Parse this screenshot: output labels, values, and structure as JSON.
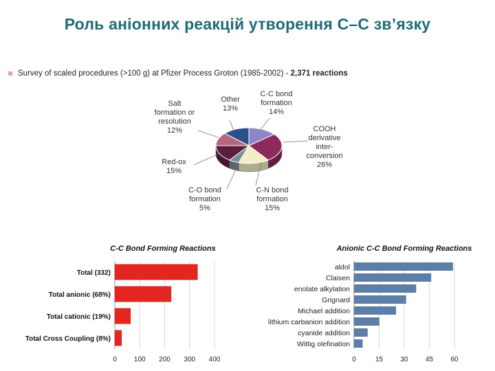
{
  "slide_title": "Роль аніонних реакцій утворення С–С зв’язку",
  "survey": {
    "text": "Survey of scaled procedures (>100 g) at Pfizer Process Groton (1985-2002) - ",
    "bold": "2,371 reactions"
  },
  "chart_data": [
    {
      "type": "pie",
      "categories": [
        "C-C bond formation",
        "COOH derivative inter-conversion",
        "C-N bond formation",
        "C-O bond formation",
        "Red-ox",
        "Salt formation or resolution",
        "Other"
      ],
      "values": [
        14,
        26,
        15,
        5,
        15,
        12,
        13
      ],
      "labels": [
        [
          "C-C bond",
          "formation",
          "14%"
        ],
        [
          "COOH",
          "derivative",
          "inter-",
          "conversion",
          "26%"
        ],
        [
          "C-N bond",
          "formation",
          "15%"
        ],
        [
          "C-O bond",
          "formation",
          "5%"
        ],
        [
          "Red-ox",
          "15%"
        ],
        [
          "Salt",
          "formation or",
          "resolution",
          "12%"
        ],
        [
          "Other",
          "13%"
        ]
      ],
      "colors": [
        "#8e86c8",
        "#8c2a5c",
        "#f3efc4",
        "#7d8c97",
        "#5b1f3c",
        "#b8667c",
        "#2c4f8a"
      ]
    },
    {
      "type": "bar",
      "orientation": "horizontal",
      "title": "C-C Bond Forming Reactions",
      "categories": [
        "Total (332)",
        "Total anionic (68%)",
        "Total cationic (19%)",
        "Total Cross Coupling (8%)"
      ],
      "values": [
        332,
        226,
        63,
        27
      ],
      "xlim": [
        0,
        400
      ],
      "xticks": [
        "0",
        "100",
        "200",
        "300",
        "400"
      ],
      "color": "#e3261f"
    },
    {
      "type": "bar",
      "orientation": "horizontal",
      "title": "Anionic C-C Bond Forming Reactions",
      "categories": [
        "aldol",
        "Claisen",
        "enolate alkylation",
        "Grignard",
        "Michael addition",
        "lithium carbanion addition",
        "cyanide addition",
        "Wittig olefination"
      ],
      "values": [
        59,
        46,
        37,
        31,
        25,
        15,
        8,
        5
      ],
      "xlim": [
        0,
        60
      ],
      "xticks": [
        "0",
        "15",
        "30",
        "45",
        "60"
      ],
      "color": "#5c7ea8"
    }
  ]
}
